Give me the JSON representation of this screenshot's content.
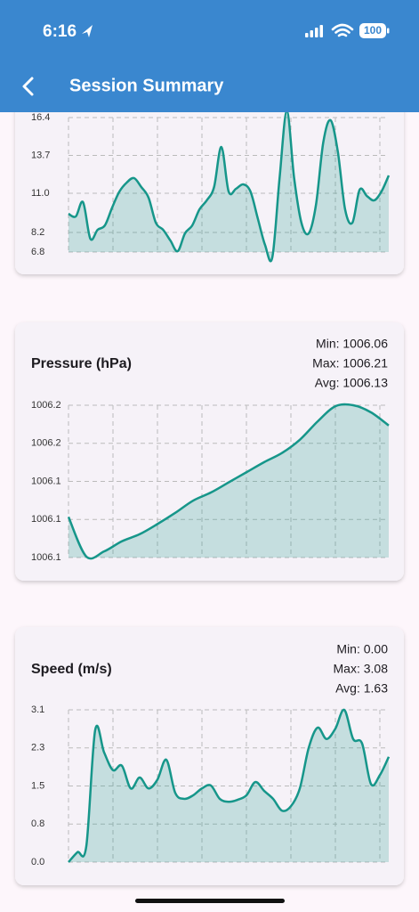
{
  "status_bar": {
    "time": "6:16",
    "battery": "100"
  },
  "header": {
    "title": "Session Summary"
  },
  "chart_data": [
    {
      "type": "area",
      "color": "#16968a",
      "grid": true,
      "values": [
        9.53,
        9.34,
        10.36,
        7.75,
        8.39,
        8.7,
        9.98,
        11.12,
        11.76,
        12.08,
        11.44,
        10.68,
        8.89,
        8.39,
        7.62,
        6.86,
        8.13,
        8.7,
        9.85,
        10.49,
        11.44,
        14.3,
        11.12,
        11.31,
        11.63,
        11.12,
        9.21,
        7.31,
        6.41,
        12.08,
        16.85,
        12.08,
        8.89,
        8.13,
        10.17,
        14.62,
        16.21,
        13.98,
        9.85,
        8.89,
        11.25,
        10.8,
        10.49,
        11.12,
        12.27
      ],
      "ylim": [
        6.8,
        16.4
      ],
      "yticks": [
        16.4,
        13.7,
        {
          "value": 11,
          "label": "11.0"
        },
        8.2,
        6.8
      ]
    },
    {
      "type": "area",
      "title": "Pressure (hPa)",
      "color": "#16968a",
      "grid": true,
      "annotations": [
        "Min: 1006.06",
        "Max: 1006.21",
        "Avg: 1006.13"
      ],
      "values": [
        1006.1,
        1006.061,
        1006.066,
        1006.076,
        1006.083,
        1006.093,
        1006.104,
        1006.116,
        1006.124,
        1006.134,
        1006.144,
        1006.154,
        1006.163,
        1006.176,
        1006.194,
        1006.209,
        1006.21,
        1006.203,
        1006.19
      ],
      "ylim": [
        1006.06,
        1006.21
      ],
      "yticks": [
        {
          "value": 1006.21,
          "label": "1006.2"
        },
        {
          "value": 1006.1725,
          "label": "1006.2"
        },
        {
          "value": 1006.135,
          "label": "1006.1"
        },
        {
          "value": 1006.0975,
          "label": "1006.1"
        },
        {
          "value": 1006.06,
          "label": "1006.1"
        }
      ]
    },
    {
      "type": "area",
      "title": "Speed (m/s)",
      "color": "#16968a",
      "grid": true,
      "annotations": [
        "Min: 0.00",
        "Max: 3.08",
        "Avg: 1.63"
      ],
      "values": [
        0,
        0.2,
        0.32,
        2.67,
        2.22,
        1.86,
        1.95,
        1.49,
        1.71,
        1.49,
        1.67,
        2.07,
        1.4,
        1.28,
        1.35,
        1.49,
        1.55,
        1.28,
        1.22,
        1.26,
        1.35,
        1.62,
        1.44,
        1.28,
        1.04,
        1.13,
        1.49,
        2.31,
        2.72,
        2.49,
        2.7,
        3.08,
        2.49,
        2.4,
        1.58,
        1.76,
        2.13
      ],
      "ylim": [
        0,
        3.08
      ],
      "yticks": [
        {
          "value": 3.08,
          "label": "3.1"
        },
        {
          "value": 2.31,
          "label": "2.3"
        },
        {
          "value": 1.54,
          "label": "1.5"
        },
        {
          "value": 0.77,
          "label": "0.8"
        },
        {
          "value": 0,
          "label": "0.0"
        }
      ]
    }
  ]
}
